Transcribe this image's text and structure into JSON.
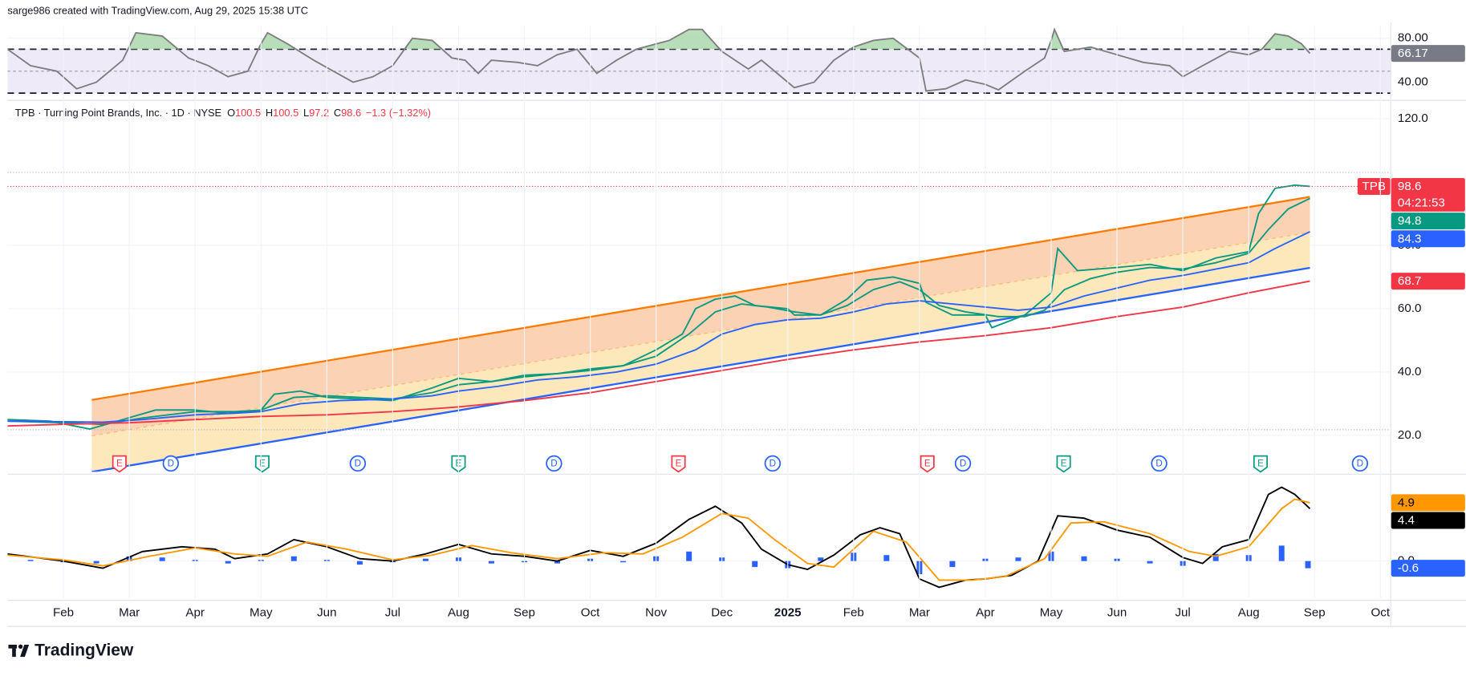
{
  "header": "sarge986 created with TradingView.com, Aug 29, 2025 15:38 UTC",
  "footer": "TradingView",
  "chart_data": [
    {
      "type": "line",
      "xlim": [
        0.15,
        21.15
      ],
      "ylim": [
        25.5,
        91
      ],
      "yticks": [
        {
          "value": 40,
          "label": "40.00"
        },
        {
          "value": 80,
          "label": "80.00"
        }
      ],
      "band": {
        "upper": 70,
        "middle": 50,
        "lower": 30,
        "fill": "#efeaf8",
        "over_fill": "#a5d6a7"
      },
      "series": [
        {
          "color": "#7e7e7e",
          "last_label": {
            "fill": "#787b86",
            "text": "#ffffff"
          },
          "x": [
            0.15,
            0.5,
            0.9,
            1.2,
            1.5,
            1.9,
            2.1,
            2.5,
            2.9,
            3.2,
            3.5,
            3.8,
            4.0,
            4.1,
            4.4,
            4.8,
            5.1,
            5.4,
            5.7,
            6.0,
            6.3,
            6.6,
            6.9,
            7.1,
            7.3,
            7.5,
            7.9,
            8.2,
            8.5,
            8.8,
            9.1,
            9.4,
            9.7,
            10.2,
            10.5,
            10.7,
            11.0,
            11.4,
            11.6,
            11.9,
            12.1,
            12.4,
            12.7,
            13.0,
            13.3,
            13.6,
            14.0,
            14.1,
            14.4,
            14.7,
            15.0,
            15.2,
            15.6,
            15.9,
            16.0,
            16.05,
            16.2,
            16.6,
            17.0,
            17.4,
            17.8,
            18.0,
            18.3,
            18.7,
            19.0,
            19.2,
            19.4,
            19.6,
            19.8,
            19.93
          ],
          "values": [
            70,
            55,
            50,
            34,
            40,
            60,
            85,
            82,
            62,
            55,
            45,
            50,
            75,
            85,
            75,
            60,
            50,
            40,
            45,
            55,
            80,
            78,
            62,
            60,
            48,
            60,
            58,
            55,
            65,
            70,
            48,
            60,
            70,
            78,
            88,
            88,
            68,
            52,
            60,
            45,
            35,
            40,
            60,
            72,
            78,
            80,
            62,
            32,
            34,
            42,
            38,
            33,
            50,
            62,
            78,
            88,
            68,
            72,
            65,
            58,
            55,
            45,
            55,
            68,
            65,
            70,
            84,
            82,
            75,
            66.17
          ]
        }
      ]
    },
    {
      "type": "line",
      "title": "TPB · Turning Point Brands, Inc. · 1D · NYSE",
      "ohlc": [
        {
          "key": "O",
          "value": 100.5
        },
        {
          "key": "H",
          "value": 100.5
        },
        {
          "key": "L",
          "value": 97.2
        },
        {
          "key": "C",
          "value": 98.6
        }
      ],
      "change_text": "−1.3 (−1.32%)",
      "symbol_badge": "TPB",
      "countdown": "04:21:53",
      "xlim": [
        0.15,
        21.15
      ],
      "ylim": [
        8.5,
        125
      ],
      "yticks": [
        {
          "value": 20,
          "label": "20.0"
        },
        {
          "value": 40,
          "label": "40.0"
        },
        {
          "value": 60,
          "label": "60.0"
        },
        {
          "value": 80,
          "label": "80.0"
        },
        {
          "value": 120,
          "label": "120.0"
        }
      ],
      "levels": [
        {
          "value": 103,
          "color": "#b2b5be"
        },
        {
          "value": 21.8,
          "color": "#b2b5be"
        }
      ],
      "channel": {
        "upper": {
          "x": [
            1.43,
            19.93
          ],
          "values": [
            31.2,
            95.3
          ],
          "color": "#ff7b00"
        },
        "lower": {
          "x": [
            1.43,
            19.93
          ],
          "values": [
            8.5,
            72.9
          ],
          "color": "#2962ff"
        },
        "upper_fill": "#fbd3b4",
        "lower_fill": "#fde8bc"
      },
      "series": [
        {
          "color": "#089981",
          "price_line": "#f23645",
          "last_label": {
            "fill": "#f23645",
            "text": "#ffffff"
          },
          "x": [
            0.15,
            0.8,
            1.4,
            1.9,
            2.4,
            3.0,
            3.5,
            4.0,
            4.2,
            4.6,
            5.0,
            6.0,
            6.6,
            7.0,
            7.5,
            8.0,
            8.5,
            9.0,
            9.5,
            10.0,
            10.4,
            10.6,
            10.9,
            11.2,
            11.5,
            12.0,
            12.1,
            12.5,
            12.9,
            13.2,
            13.6,
            14.0,
            14.1,
            14.5,
            15.0,
            15.1,
            15.6,
            16.0,
            16.1,
            16.4,
            17.0,
            17.5,
            18.0,
            18.5,
            19.0,
            19.15,
            19.4,
            19.7,
            19.93
          ],
          "values": [
            25,
            24.5,
            22,
            25,
            28,
            28,
            27,
            28,
            33,
            34,
            32,
            31,
            35,
            38,
            37,
            39,
            39.5,
            41,
            42,
            47,
            52,
            60,
            63,
            64,
            61,
            60,
            58,
            58,
            63,
            69,
            70,
            68,
            62,
            58,
            58,
            54,
            58,
            65,
            79,
            72,
            73,
            74,
            72,
            76,
            78,
            90,
            98,
            99,
            98.6
          ]
        },
        {
          "color": "#089981",
          "last_label": {
            "fill": "#089981",
            "text": "#ffffff"
          },
          "x": [
            0.15,
            1.0,
            1.6,
            2.2,
            3.0,
            3.6,
            4.0,
            4.5,
            5.0,
            6.0,
            6.6,
            7.0,
            7.5,
            8.0,
            8.5,
            9.0,
            9.5,
            10.0,
            10.5,
            10.9,
            11.3,
            11.7,
            12.1,
            12.5,
            12.9,
            13.3,
            13.7,
            14.0,
            14.3,
            14.7,
            15.2,
            15.6,
            15.9,
            16.2,
            16.6,
            17.0,
            17.5,
            18.0,
            18.5,
            19.0,
            19.3,
            19.6,
            19.93
          ],
          "values": [
            24.5,
            24,
            23.5,
            25.5,
            27.5,
            27.5,
            28,
            32,
            32.5,
            31.5,
            33.5,
            36,
            37,
            38.5,
            39.5,
            40.5,
            42,
            45,
            52,
            59,
            61.5,
            60.5,
            59,
            58,
            61,
            66,
            68.5,
            66,
            61,
            59,
            57.5,
            57.5,
            59.5,
            66,
            69.5,
            71.5,
            73,
            72.5,
            74.5,
            77.5,
            85,
            91.5,
            94.8
          ]
        },
        {
          "color": "#2962ff",
          "last_label": {
            "fill": "#2962ff",
            "text": "#ffffff"
          },
          "x": [
            0.15,
            1.0,
            1.6,
            2.2,
            3.0,
            3.6,
            4.0,
            4.6,
            5.2,
            6.0,
            6.6,
            7.0,
            7.6,
            8.2,
            8.8,
            9.4,
            10.0,
            10.6,
            11.0,
            11.5,
            12.0,
            12.5,
            13.0,
            13.5,
            14.0,
            14.5,
            15.0,
            15.5,
            16.0,
            16.5,
            17.0,
            17.5,
            18.0,
            18.5,
            19.0,
            19.4,
            19.93
          ],
          "values": [
            24.5,
            24.3,
            24.2,
            25,
            26.5,
            27,
            27.5,
            30,
            31,
            31.5,
            32.5,
            34,
            35.5,
            37.5,
            38.5,
            40,
            42.5,
            47,
            52,
            55,
            56.5,
            57,
            59,
            61.5,
            62.5,
            61.5,
            60.5,
            59.5,
            60.5,
            64,
            66.5,
            69,
            70.5,
            72.5,
            74.5,
            79,
            84.3
          ]
        },
        {
          "color": "#f23645",
          "last_label": {
            "fill": "#f23645",
            "text": "#ffffff"
          },
          "x": [
            0.15,
            1,
            2,
            3,
            4,
            5,
            6,
            7,
            8,
            9,
            10,
            11,
            12,
            13,
            14,
            15,
            16,
            17,
            18,
            19,
            19.93
          ],
          "values": [
            23,
            23.5,
            24,
            25,
            26,
            26.5,
            27.5,
            29,
            31,
            33.5,
            37,
            40.5,
            44,
            47,
            49.5,
            51.5,
            54,
            57.5,
            60.5,
            65,
            68.7
          ]
        }
      ],
      "events": [
        {
          "x": 1.85,
          "label": "E",
          "color": "#f23645",
          "shape": "flag"
        },
        {
          "x": 2.63,
          "label": "D",
          "color": "#2962ff",
          "shape": "circle"
        },
        {
          "x": 4.02,
          "label": "E",
          "color": "#089981",
          "shape": "flag"
        },
        {
          "x": 5.47,
          "label": "D",
          "color": "#2962ff",
          "shape": "circle"
        },
        {
          "x": 7.0,
          "label": "E",
          "color": "#089981",
          "shape": "flag"
        },
        {
          "x": 8.45,
          "label": "D",
          "color": "#2962ff",
          "shape": "circle"
        },
        {
          "x": 10.34,
          "label": "E",
          "color": "#f23645",
          "shape": "flag"
        },
        {
          "x": 11.77,
          "label": "D",
          "color": "#2962ff",
          "shape": "circle"
        },
        {
          "x": 14.12,
          "label": "E",
          "color": "#f23645",
          "shape": "flag"
        },
        {
          "x": 14.66,
          "label": "D",
          "color": "#2962ff",
          "shape": "circle"
        },
        {
          "x": 16.19,
          "label": "E",
          "color": "#089981",
          "shape": "flag"
        },
        {
          "x": 17.64,
          "label": "D",
          "color": "#2962ff",
          "shape": "circle"
        },
        {
          "x": 19.18,
          "label": "E",
          "color": "#089981",
          "shape": "flag"
        },
        {
          "x": 20.69,
          "label": "D",
          "color": "#2962ff",
          "shape": "circle"
        }
      ]
    },
    {
      "type": "line",
      "xlim": [
        0.15,
        21.15
      ],
      "ylim": [
        -3.1,
        7.1
      ],
      "yticks": [
        {
          "value": 0,
          "label": "0.0"
        }
      ],
      "xticks": [
        {
          "value": 1,
          "label": "Feb"
        },
        {
          "value": 2,
          "label": "Mar"
        },
        {
          "value": 3,
          "label": "Apr"
        },
        {
          "value": 4,
          "label": "May"
        },
        {
          "value": 5,
          "label": "Jun"
        },
        {
          "value": 6,
          "label": "Jul"
        },
        {
          "value": 7,
          "label": "Aug"
        },
        {
          "value": 8,
          "label": "Sep"
        },
        {
          "value": 9,
          "label": "Oct"
        },
        {
          "value": 10,
          "label": "Nov"
        },
        {
          "value": 11,
          "label": "Dec"
        },
        {
          "value": 12,
          "label": "2025"
        },
        {
          "value": 13,
          "label": "Feb"
        },
        {
          "value": 14,
          "label": "Mar"
        },
        {
          "value": 15,
          "label": "Apr"
        },
        {
          "value": 16,
          "label": "May"
        },
        {
          "value": 17,
          "label": "Jun"
        },
        {
          "value": 18,
          "label": "Jul"
        },
        {
          "value": 19,
          "label": "Aug"
        },
        {
          "value": 20,
          "label": "Sep"
        },
        {
          "value": 21,
          "label": "Oct"
        }
      ],
      "series": [
        {
          "type": "bar",
          "color": "#2962ff",
          "last_label": {
            "fill": "#2962ff",
            "text": "#ffffff"
          },
          "x": [
            0.5,
            1,
            1.5,
            2,
            2.5,
            3,
            3.5,
            4,
            4.5,
            5,
            5.5,
            6,
            6.5,
            7,
            7.5,
            8,
            8.5,
            9,
            9.5,
            10,
            10.5,
            11,
            11.5,
            12,
            12.5,
            13,
            13.5,
            14,
            14.5,
            15,
            15.5,
            16,
            16.5,
            17,
            17.5,
            18,
            18.5,
            19,
            19.5,
            19.9
          ],
          "values": [
            0.1,
            -0.1,
            -0.2,
            0.4,
            0.3,
            0.1,
            -0.2,
            0.1,
            0.4,
            0.1,
            -0.3,
            -0.1,
            0.2,
            0.3,
            -0.2,
            -0.1,
            -0.2,
            0.2,
            -0.1,
            0.4,
            0.8,
            0.3,
            -0.5,
            -0.6,
            0.3,
            0.7,
            0.5,
            -1.1,
            -0.5,
            0.2,
            0.3,
            0.8,
            0.4,
            0.2,
            -0.2,
            -0.4,
            0.6,
            0.5,
            1.3,
            -0.6
          ]
        },
        {
          "color": "#000000",
          "last_label": {
            "fill": "#000000",
            "text": "#ffffff"
          },
          "x": [
            0.15,
            1.0,
            1.6,
            2.2,
            2.8,
            3.3,
            3.6,
            4.1,
            4.5,
            5.0,
            5.5,
            6.0,
            6.5,
            7.0,
            7.5,
            8.0,
            8.5,
            9.0,
            9.5,
            10.0,
            10.5,
            10.9,
            11.3,
            11.6,
            12.0,
            12.3,
            12.7,
            13.1,
            13.4,
            13.7,
            14.0,
            14.3,
            14.7,
            15.0,
            15.4,
            15.8,
            16.1,
            16.5,
            17.0,
            17.5,
            18.0,
            18.3,
            18.6,
            19.0,
            19.3,
            19.5,
            19.7,
            19.93
          ],
          "values": [
            0.6,
            0,
            -0.6,
            0.8,
            1.2,
            1.0,
            0.2,
            0.6,
            1.8,
            1.2,
            0.2,
            0,
            0.6,
            1.4,
            0.6,
            0.4,
            0,
            0.9,
            0.4,
            1.5,
            3.5,
            4.6,
            3.2,
            1.0,
            -0.3,
            -0.7,
            0.5,
            2.2,
            2.8,
            2.3,
            -1.5,
            -2.2,
            -1.6,
            -1.5,
            -1.2,
            0,
            3.8,
            3.6,
            2.6,
            2.0,
            0.3,
            -0.2,
            1.2,
            1.8,
            5.6,
            6.2,
            5.6,
            4.4
          ]
        },
        {
          "color": "#ff9800",
          "last_label": {
            "fill": "#ff9800",
            "text": "#000000"
          },
          "x": [
            0.15,
            1.0,
            1.6,
            2.3,
            3.0,
            3.6,
            4.1,
            4.7,
            5.3,
            6.0,
            6.6,
            7.2,
            7.8,
            8.5,
            9.2,
            9.8,
            10.4,
            11.0,
            11.4,
            11.8,
            12.3,
            12.7,
            13.3,
            13.8,
            14.3,
            14.8,
            15.3,
            15.9,
            16.3,
            16.8,
            17.5,
            18.1,
            18.5,
            19.0,
            19.5,
            19.7,
            19.93
          ],
          "values": [
            0.5,
            0.1,
            -0.4,
            0.4,
            1.1,
            0.6,
            0.4,
            1.6,
            1.0,
            0.1,
            0.5,
            1.3,
            0.7,
            0.2,
            0.7,
            0.6,
            2.0,
            4.0,
            3.6,
            1.8,
            -0.2,
            -0.5,
            2.5,
            1.6,
            -1.6,
            -1.6,
            -1.3,
            0.2,
            3.2,
            3.3,
            2.3,
            0.8,
            0.4,
            1.2,
            4.4,
            5.2,
            4.9
          ]
        }
      ]
    }
  ]
}
